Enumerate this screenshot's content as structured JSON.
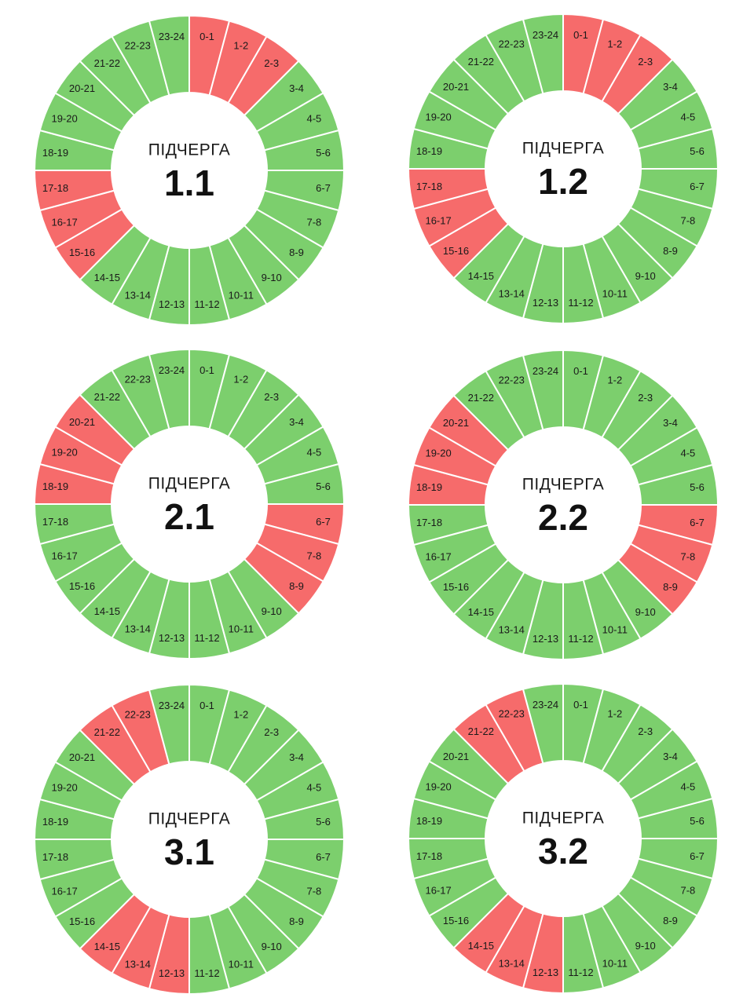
{
  "colors": {
    "on": "#7ccf6d",
    "off": "#f66b6b",
    "separator": "#ffffff",
    "hub": "#ffffff"
  },
  "hour_labels": [
    "0-1",
    "1-2",
    "2-3",
    "3-4",
    "4-5",
    "5-6",
    "6-7",
    "7-8",
    "8-9",
    "9-10",
    "10-11",
    "11-12",
    "12-13",
    "13-14",
    "14-15",
    "15-16",
    "16-17",
    "17-18",
    "18-19",
    "19-20",
    "20-21",
    "21-22",
    "22-23",
    "23-24"
  ],
  "wheels": [
    {
      "caption": "ПІДЧЕРГА",
      "queue": "1.1",
      "off_hours": [
        0,
        1,
        2,
        15,
        16,
        17
      ]
    },
    {
      "caption": "ПІДЧЕРГА",
      "queue": "1.2",
      "off_hours": [
        0,
        1,
        2,
        15,
        16,
        17
      ]
    },
    {
      "caption": "ПІДЧЕРГА",
      "queue": "2.1",
      "off_hours": [
        6,
        7,
        8,
        18,
        19,
        20
      ]
    },
    {
      "caption": "ПІДЧЕРГА",
      "queue": "2.2",
      "off_hours": [
        6,
        7,
        8,
        18,
        19,
        20
      ]
    },
    {
      "caption": "ПІДЧЕРГА",
      "queue": "3.1",
      "off_hours": [
        12,
        13,
        14,
        21,
        22
      ]
    },
    {
      "caption": "ПІДЧЕРГА",
      "queue": "3.2",
      "off_hours": [
        12,
        13,
        14,
        21,
        22
      ]
    }
  ]
}
